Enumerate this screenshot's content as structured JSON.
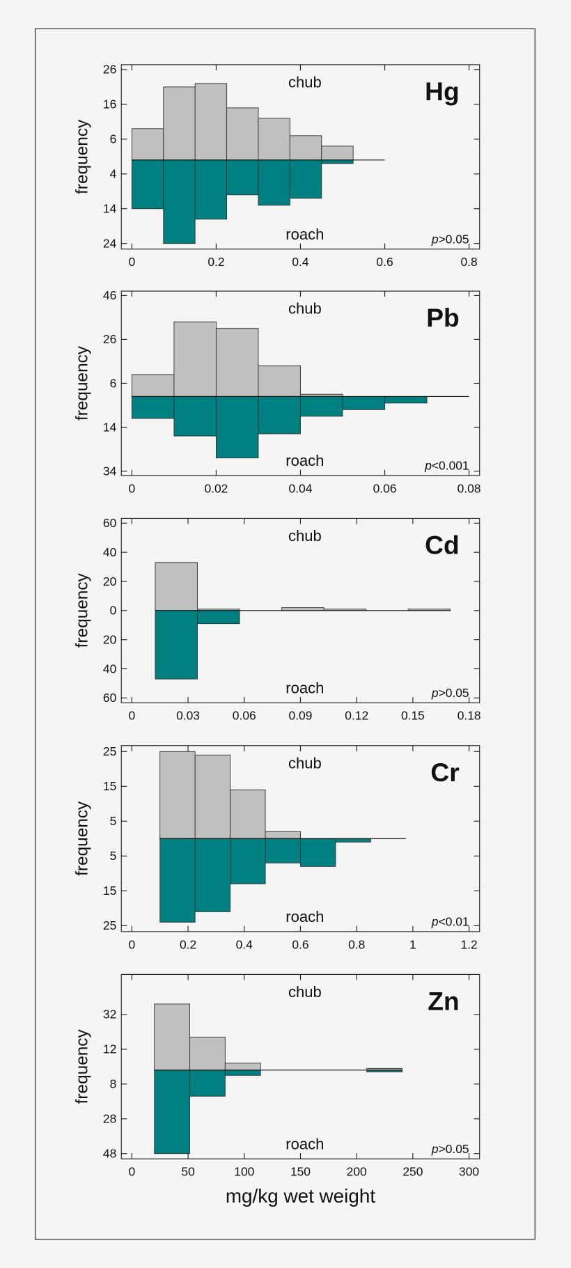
{
  "chart_data": [
    {
      "type": "histogram",
      "title": "Hg",
      "ylabel": "frequency",
      "top_label": "chub",
      "bottom_label": "roach",
      "p_symbol": "p",
      "p_comparison": ">0.05",
      "bins": [
        0,
        0.075,
        0.15,
        0.225,
        0.3,
        0.375,
        0.45,
        0.525,
        0.6
      ],
      "series": [
        {
          "name": "chub",
          "color": "#c0c0c0",
          "values": [
            9,
            21,
            22,
            15,
            12,
            7,
            4,
            0
          ]
        },
        {
          "name": "roach",
          "color": "#008080",
          "values": [
            14,
            24,
            17,
            10,
            13,
            11,
            1,
            0
          ]
        }
      ],
      "xlim": [
        -0.025,
        0.825
      ],
      "xticks": [
        0,
        0.2,
        0.4,
        0.6,
        0.8
      ],
      "ylim": [
        -25.6,
        27.4
      ],
      "yticks": [
        26,
        16,
        6,
        {
          "value": -4,
          "label": "4"
        },
        {
          "value": -14,
          "label": "14"
        },
        {
          "value": -24,
          "label": "24"
        }
      ]
    },
    {
      "type": "histogram",
      "title": "Pb",
      "ylabel": "frequency",
      "top_label": "chub",
      "bottom_label": "roach",
      "p_symbol": "p",
      "p_comparison": "<0.001",
      "bins": [
        0,
        0.01,
        0.02,
        0.03,
        0.04,
        0.05,
        0.06,
        0.07,
        0.08
      ],
      "series": [
        {
          "name": "chub",
          "color": "#c0c0c0",
          "values": [
            10,
            34,
            31,
            14,
            1,
            0,
            0,
            0
          ]
        },
        {
          "name": "roach",
          "color": "#008080",
          "values": [
            10,
            18,
            28,
            17,
            9,
            6,
            3,
            0
          ]
        }
      ],
      "xlim": [
        -0.0025,
        0.0825
      ],
      "xticks": [
        0,
        0.02,
        0.04,
        0.06,
        0.08
      ],
      "ylim": [
        -36,
        48
      ],
      "yticks": [
        46,
        26,
        6,
        {
          "value": -14,
          "label": "14"
        },
        {
          "value": -34,
          "label": "34"
        }
      ]
    },
    {
      "type": "histogram",
      "title": "Cd",
      "ylabel": "frequency",
      "top_label": "chub",
      "bottom_label": "roach",
      "p_symbol": "p",
      "p_comparison": ">0.05",
      "bins": [
        0.0125,
        0.035,
        0.0575,
        0.08,
        0.1025,
        0.125,
        0.1475,
        0.17
      ],
      "series": [
        {
          "name": "chub",
          "color": "#c0c0c0",
          "values": [
            33,
            1,
            0,
            2,
            1,
            0,
            1
          ]
        },
        {
          "name": "roach",
          "color": "#008080",
          "values": [
            47,
            9,
            0,
            0,
            0,
            0,
            0
          ]
        }
      ],
      "xlim": [
        -0.0056,
        0.1856
      ],
      "xticks": [
        0,
        0.03,
        0.06,
        0.09,
        0.12,
        0.15,
        0.18
      ],
      "ylim": [
        -63.3,
        63.3
      ],
      "yticks": [
        60,
        40,
        20,
        0,
        {
          "value": -20,
          "label": "20"
        },
        {
          "value": -40,
          "label": "40"
        },
        {
          "value": -60,
          "label": "60"
        }
      ]
    },
    {
      "type": "histogram",
      "title": "Cr",
      "ylabel": "frequency",
      "top_label": "chub",
      "bottom_label": "roach",
      "p_symbol": "p",
      "p_comparison": "<0.01",
      "bins": [
        0.1,
        0.225,
        0.35,
        0.475,
        0.6,
        0.725,
        0.85,
        0.975
      ],
      "series": [
        {
          "name": "chub",
          "color": "#c0c0c0",
          "values": [
            25,
            24,
            14,
            2,
            0,
            0,
            0
          ]
        },
        {
          "name": "roach",
          "color": "#008080",
          "values": [
            24,
            21,
            13,
            7,
            8,
            1,
            0
          ]
        }
      ],
      "xlim": [
        -0.0374,
        1.2374
      ],
      "xticks": [
        0,
        0.2,
        0.4,
        0.6,
        0.8,
        1,
        1.2
      ],
      "ylim": [
        -26.7,
        26.7
      ],
      "yticks": [
        25,
        15,
        5,
        {
          "value": -5,
          "label": "5"
        },
        {
          "value": -15,
          "label": "15"
        },
        {
          "value": -25,
          "label": "25"
        }
      ]
    },
    {
      "type": "histogram",
      "title": "Zn",
      "ylabel": "frequency",
      "xlabel": "mg/kg wet weight",
      "top_label": "chub",
      "bottom_label": "roach",
      "p_symbol": "p",
      "p_comparison": ">0.05",
      "bins": [
        20,
        51.5,
        83,
        114.5,
        146,
        177.5,
        209,
        240.5
      ],
      "series": [
        {
          "name": "chub",
          "color": "#c0c0c0",
          "values": [
            38,
            19,
            4,
            0,
            0,
            0,
            1
          ]
        },
        {
          "name": "roach",
          "color": "#008080",
          "values": [
            48,
            15,
            3,
            0,
            0,
            0,
            1
          ]
        }
      ],
      "xlim": [
        -9.4,
        309.4
      ],
      "xticks": [
        0,
        50,
        100,
        150,
        200,
        250,
        300
      ],
      "ylim": [
        -51,
        55
      ],
      "yticks": [
        32,
        12,
        {
          "value": -8,
          "label": "8"
        },
        {
          "value": -28,
          "label": "28"
        },
        {
          "value": -48,
          "label": "48"
        }
      ]
    }
  ]
}
